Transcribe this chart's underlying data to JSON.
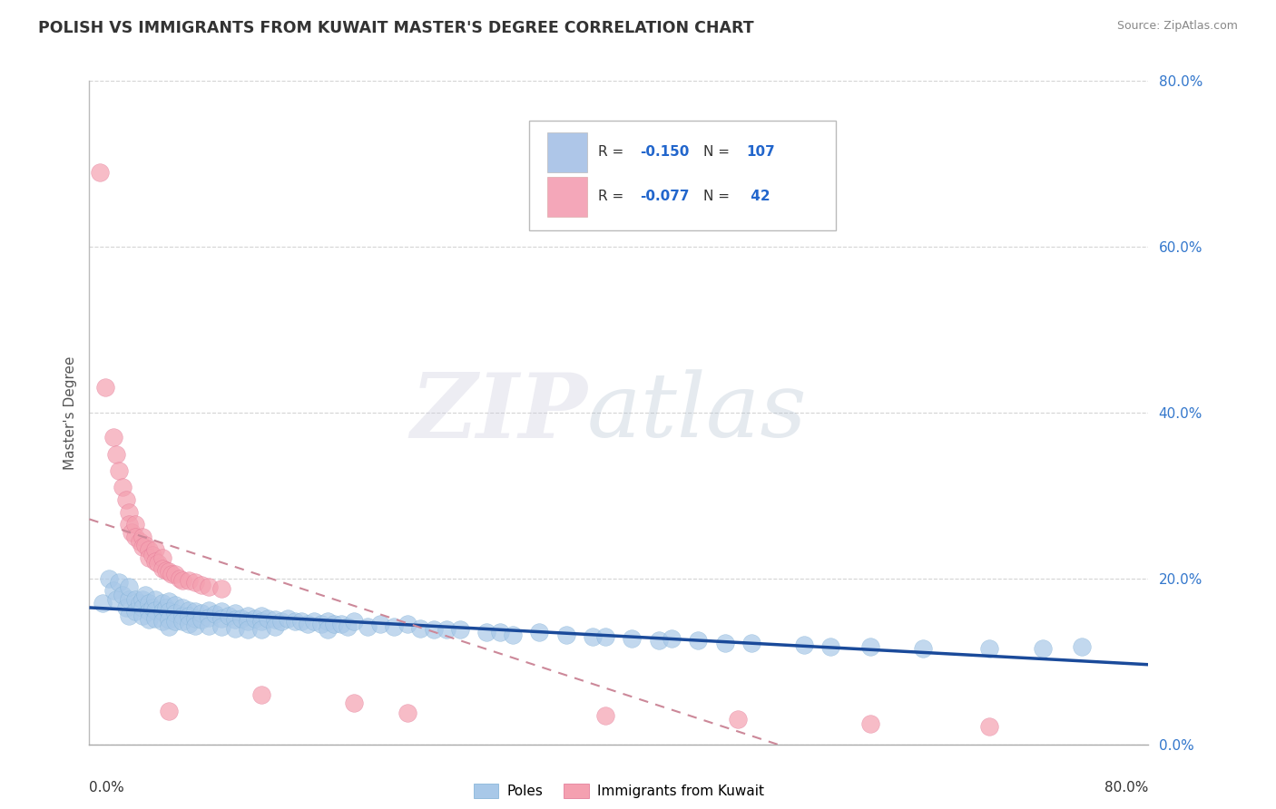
{
  "title": "POLISH VS IMMIGRANTS FROM KUWAIT MASTER'S DEGREE CORRELATION CHART",
  "source": "Source: ZipAtlas.com",
  "ylabel": "Master's Degree",
  "ytick_vals": [
    0.0,
    0.2,
    0.4,
    0.6,
    0.8
  ],
  "xlim": [
    0.0,
    0.8
  ],
  "ylim": [
    0.0,
    0.8
  ],
  "poles_color": "#a8c8e8",
  "poles_edge_color": "#7aadd4",
  "kuwait_color": "#f4a0b0",
  "kuwait_edge_color": "#e07090",
  "poles_line_color": "#1a4a9a",
  "kuwait_line_color": "#cc5577",
  "kuwait_line_dash_color": "#cc8899",
  "background_color": "#ffffff",
  "grid_color": "#d0d0d0",
  "legend_box_color": "#aec6e8",
  "legend_pink_color": "#f4a7b9",
  "poles_scatter": [
    [
      0.01,
      0.17
    ],
    [
      0.015,
      0.2
    ],
    [
      0.018,
      0.185
    ],
    [
      0.02,
      0.175
    ],
    [
      0.022,
      0.195
    ],
    [
      0.025,
      0.18
    ],
    [
      0.028,
      0.165
    ],
    [
      0.03,
      0.175
    ],
    [
      0.03,
      0.19
    ],
    [
      0.03,
      0.155
    ],
    [
      0.035,
      0.175
    ],
    [
      0.035,
      0.16
    ],
    [
      0.038,
      0.17
    ],
    [
      0.04,
      0.175
    ],
    [
      0.04,
      0.165
    ],
    [
      0.04,
      0.155
    ],
    [
      0.042,
      0.18
    ],
    [
      0.045,
      0.17
    ],
    [
      0.045,
      0.16
    ],
    [
      0.045,
      0.15
    ],
    [
      0.048,
      0.165
    ],
    [
      0.05,
      0.175
    ],
    [
      0.05,
      0.162
    ],
    [
      0.05,
      0.152
    ],
    [
      0.055,
      0.17
    ],
    [
      0.055,
      0.16
    ],
    [
      0.055,
      0.148
    ],
    [
      0.058,
      0.165
    ],
    [
      0.06,
      0.172
    ],
    [
      0.06,
      0.16
    ],
    [
      0.06,
      0.15
    ],
    [
      0.06,
      0.142
    ],
    [
      0.065,
      0.168
    ],
    [
      0.065,
      0.158
    ],
    [
      0.065,
      0.148
    ],
    [
      0.07,
      0.165
    ],
    [
      0.07,
      0.155
    ],
    [
      0.07,
      0.148
    ],
    [
      0.075,
      0.162
    ],
    [
      0.075,
      0.155
    ],
    [
      0.075,
      0.145
    ],
    [
      0.08,
      0.16
    ],
    [
      0.08,
      0.152
    ],
    [
      0.08,
      0.143
    ],
    [
      0.085,
      0.158
    ],
    [
      0.085,
      0.15
    ],
    [
      0.09,
      0.162
    ],
    [
      0.09,
      0.153
    ],
    [
      0.09,
      0.143
    ],
    [
      0.095,
      0.157
    ],
    [
      0.1,
      0.16
    ],
    [
      0.1,
      0.152
    ],
    [
      0.1,
      0.142
    ],
    [
      0.105,
      0.155
    ],
    [
      0.11,
      0.158
    ],
    [
      0.11,
      0.15
    ],
    [
      0.11,
      0.14
    ],
    [
      0.115,
      0.152
    ],
    [
      0.12,
      0.155
    ],
    [
      0.12,
      0.148
    ],
    [
      0.12,
      0.138
    ],
    [
      0.125,
      0.152
    ],
    [
      0.13,
      0.155
    ],
    [
      0.13,
      0.148
    ],
    [
      0.13,
      0.138
    ],
    [
      0.135,
      0.152
    ],
    [
      0.14,
      0.15
    ],
    [
      0.14,
      0.142
    ],
    [
      0.145,
      0.148
    ],
    [
      0.15,
      0.152
    ],
    [
      0.155,
      0.148
    ],
    [
      0.16,
      0.148
    ],
    [
      0.165,
      0.145
    ],
    [
      0.17,
      0.148
    ],
    [
      0.175,
      0.145
    ],
    [
      0.18,
      0.148
    ],
    [
      0.18,
      0.138
    ],
    [
      0.185,
      0.145
    ],
    [
      0.19,
      0.145
    ],
    [
      0.195,
      0.142
    ],
    [
      0.2,
      0.148
    ],
    [
      0.21,
      0.142
    ],
    [
      0.22,
      0.145
    ],
    [
      0.23,
      0.142
    ],
    [
      0.24,
      0.145
    ],
    [
      0.25,
      0.14
    ],
    [
      0.26,
      0.138
    ],
    [
      0.27,
      0.138
    ],
    [
      0.28,
      0.138
    ],
    [
      0.3,
      0.135
    ],
    [
      0.31,
      0.135
    ],
    [
      0.32,
      0.132
    ],
    [
      0.34,
      0.135
    ],
    [
      0.36,
      0.132
    ],
    [
      0.38,
      0.13
    ],
    [
      0.39,
      0.13
    ],
    [
      0.41,
      0.128
    ],
    [
      0.43,
      0.125
    ],
    [
      0.44,
      0.128
    ],
    [
      0.46,
      0.125
    ],
    [
      0.48,
      0.122
    ],
    [
      0.5,
      0.122
    ],
    [
      0.54,
      0.12
    ],
    [
      0.56,
      0.118
    ],
    [
      0.59,
      0.118
    ],
    [
      0.63,
      0.115
    ],
    [
      0.68,
      0.115
    ],
    [
      0.72,
      0.115
    ],
    [
      0.75,
      0.118
    ]
  ],
  "kuwait_scatter": [
    [
      0.008,
      0.69
    ],
    [
      0.012,
      0.43
    ],
    [
      0.018,
      0.37
    ],
    [
      0.02,
      0.35
    ],
    [
      0.022,
      0.33
    ],
    [
      0.025,
      0.31
    ],
    [
      0.028,
      0.295
    ],
    [
      0.03,
      0.28
    ],
    [
      0.03,
      0.265
    ],
    [
      0.032,
      0.255
    ],
    [
      0.035,
      0.265
    ],
    [
      0.035,
      0.25
    ],
    [
      0.038,
      0.245
    ],
    [
      0.04,
      0.25
    ],
    [
      0.04,
      0.238
    ],
    [
      0.042,
      0.24
    ],
    [
      0.045,
      0.235
    ],
    [
      0.045,
      0.225
    ],
    [
      0.048,
      0.228
    ],
    [
      0.05,
      0.235
    ],
    [
      0.05,
      0.22
    ],
    [
      0.052,
      0.218
    ],
    [
      0.055,
      0.225
    ],
    [
      0.055,
      0.212
    ],
    [
      0.058,
      0.21
    ],
    [
      0.06,
      0.208
    ],
    [
      0.062,
      0.205
    ],
    [
      0.065,
      0.205
    ],
    [
      0.068,
      0.2
    ],
    [
      0.07,
      0.198
    ],
    [
      0.075,
      0.198
    ],
    [
      0.08,
      0.195
    ],
    [
      0.085,
      0.192
    ],
    [
      0.09,
      0.19
    ],
    [
      0.1,
      0.188
    ],
    [
      0.06,
      0.04
    ],
    [
      0.13,
      0.06
    ],
    [
      0.2,
      0.05
    ],
    [
      0.24,
      0.038
    ],
    [
      0.39,
      0.035
    ],
    [
      0.49,
      0.03
    ],
    [
      0.59,
      0.025
    ],
    [
      0.68,
      0.022
    ]
  ]
}
